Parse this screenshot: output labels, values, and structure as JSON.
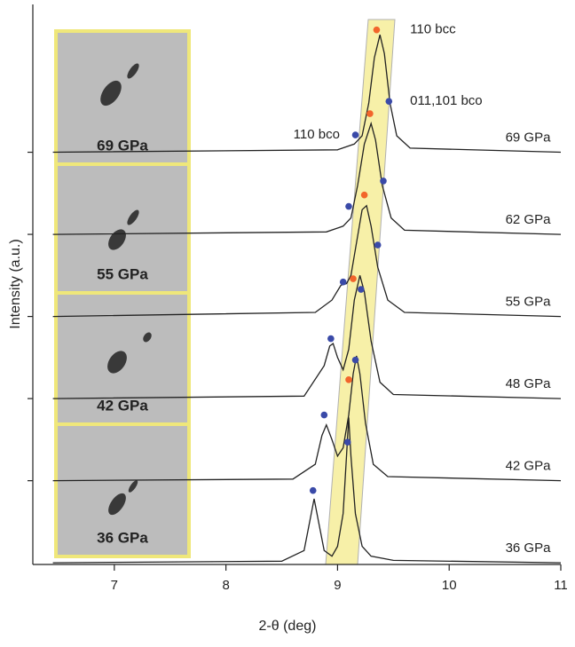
{
  "chart_data": {
    "type": "line",
    "xlabel": "2-θ (deg)",
    "ylabel": "Intensity (a.u.)",
    "xlim": [
      6.27,
      11.0
    ],
    "xticks": [
      7,
      8,
      9,
      10,
      11
    ],
    "ylim": [
      -0.02,
      6.8
    ],
    "yticks": [
      1,
      2,
      3,
      4,
      5
    ],
    "series": [
      {
        "name": "36 GPa",
        "color": "#222222",
        "x": [
          6.45,
          8.5,
          8.7,
          8.75,
          8.79,
          8.83,
          8.88,
          8.95,
          9.0,
          9.05,
          9.08,
          9.1,
          9.12,
          9.16,
          9.22,
          9.3,
          9.5,
          11.0
        ],
        "values": [
          0,
          0.02,
          0.15,
          0.5,
          0.78,
          0.5,
          0.15,
          0.08,
          0.2,
          0.6,
          1.3,
          1.77,
          1.3,
          0.6,
          0.2,
          0.08,
          0.03,
          0
        ]
      },
      {
        "name": "42 GPa",
        "color": "#222222",
        "x": [
          6.45,
          8.6,
          8.8,
          8.86,
          8.9,
          8.95,
          9.0,
          9.05,
          9.1,
          9.14,
          9.17,
          9.2,
          9.25,
          9.32,
          9.45,
          11.0
        ],
        "values": [
          1,
          1.02,
          1.2,
          1.55,
          1.68,
          1.5,
          1.3,
          1.4,
          1.8,
          2.3,
          2.52,
          2.3,
          1.7,
          1.2,
          1.05,
          1.0
        ]
      },
      {
        "name": "48 GPa",
        "color": "#222222",
        "x": [
          6.45,
          8.7,
          8.88,
          8.93,
          8.96,
          9.0,
          9.05,
          9.1,
          9.15,
          9.2,
          9.24,
          9.3,
          9.38,
          9.5,
          11.0
        ],
        "values": [
          2,
          2.03,
          2.4,
          2.64,
          2.67,
          2.5,
          2.35,
          2.6,
          3.2,
          3.5,
          3.3,
          2.7,
          2.2,
          2.05,
          2.0
        ]
      },
      {
        "name": "55 GPa",
        "color": "#222222",
        "x": [
          6.45,
          8.8,
          8.95,
          9.03,
          9.08,
          9.12,
          9.17,
          9.22,
          9.26,
          9.3,
          9.36,
          9.45,
          9.6,
          11.0
        ],
        "values": [
          3,
          3.05,
          3.2,
          3.38,
          3.4,
          3.5,
          3.9,
          4.3,
          4.35,
          4.1,
          3.6,
          3.2,
          3.05,
          3
        ]
      },
      {
        "name": "62 GPa",
        "color": "#222222",
        "x": [
          6.45,
          8.9,
          9.05,
          9.12,
          9.18,
          9.24,
          9.3,
          9.34,
          9.4,
          9.48,
          9.6,
          11.0
        ],
        "values": [
          4,
          4.03,
          4.1,
          4.2,
          4.6,
          5.1,
          5.35,
          5.15,
          4.6,
          4.2,
          4.05,
          4
        ]
      },
      {
        "name": "69 GPa",
        "color": "#222222",
        "x": [
          6.45,
          9.0,
          9.15,
          9.22,
          9.28,
          9.33,
          9.38,
          9.42,
          9.47,
          9.53,
          9.65,
          11.0
        ],
        "values": [
          5,
          5.03,
          5.1,
          5.2,
          5.6,
          6.15,
          6.43,
          6.2,
          5.6,
          5.2,
          5.05,
          5
        ]
      }
    ],
    "markers": [
      {
        "color": "#f2652b",
        "x": [
          9.35,
          9.29,
          9.24,
          9.14,
          9.1
        ],
        "values": [
          6.49,
          5.47,
          4.48,
          3.46,
          2.23
        ]
      },
      {
        "color": "#3a4aa8",
        "x": [
          9.46,
          9.16,
          9.41,
          9.1,
          9.36,
          9.05,
          9.21,
          8.94,
          9.16,
          8.88,
          9.09,
          8.78
        ],
        "values": [
          5.62,
          5.21,
          4.65,
          4.34,
          3.87,
          3.42,
          3.33,
          2.73,
          2.47,
          1.8,
          1.47,
          0.88
        ]
      }
    ],
    "annotations": [
      {
        "text": "110 bcc",
        "x": 9.65,
        "y": 6.49
      },
      {
        "text": "011,101 bco",
        "x": 9.65,
        "y": 5.62
      },
      {
        "text": "110 bco",
        "x": 9.02,
        "y": 5.21
      }
    ],
    "insets": [
      {
        "label": "69 GPa"
      },
      {
        "label": "55 GPa"
      },
      {
        "label": "42 GPa"
      },
      {
        "label": "36 GPa"
      }
    ]
  }
}
